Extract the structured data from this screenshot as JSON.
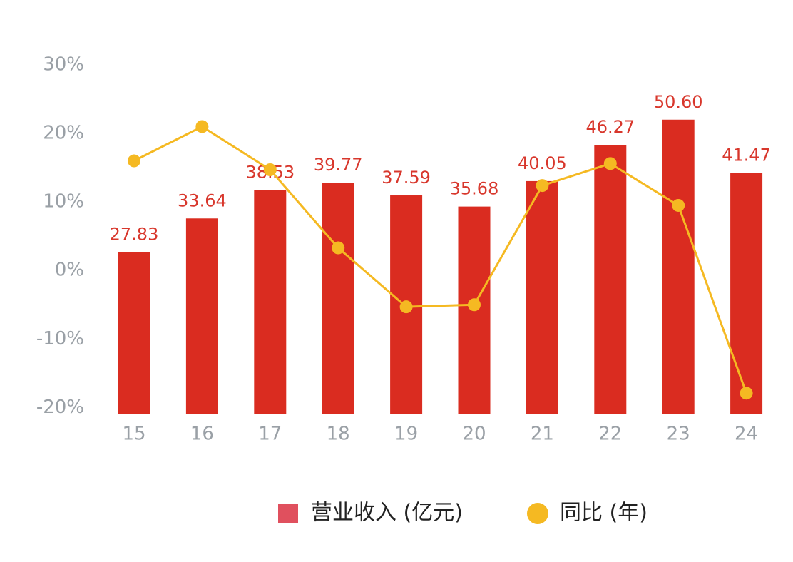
{
  "chart_data": {
    "type": "bar-line",
    "categories": [
      "15",
      "16",
      "17",
      "18",
      "19",
      "20",
      "21",
      "22",
      "23",
      "24"
    ],
    "series": [
      {
        "name": "营业收入 (亿元)",
        "type": "bar",
        "axis": "y2",
        "color": "#da2c20",
        "values": [
          27.83,
          33.64,
          38.53,
          39.77,
          37.59,
          35.68,
          40.05,
          46.27,
          50.6,
          41.47
        ],
        "value_labels": [
          "27.83",
          "33.64",
          "38.53",
          "39.77",
          "37.59",
          "35.68",
          "40.05",
          "46.27",
          "50.60",
          "41.47"
        ]
      },
      {
        "name": "同比 (年)",
        "type": "line",
        "axis": "y",
        "color": "#f5b922",
        "values": [
          16.0,
          21.0,
          14.7,
          3.3,
          -5.3,
          -5.0,
          12.4,
          15.6,
          9.5,
          -17.9
        ]
      }
    ],
    "ylim": [
      -21,
      30
    ],
    "yticks": [
      {
        "value": 30,
        "label": "30%"
      },
      {
        "value": 20,
        "label": "20%"
      },
      {
        "value": 10,
        "label": "10%"
      },
      {
        "value": 0,
        "label": "0%"
      },
      {
        "value": -10,
        "label": "-10%"
      },
      {
        "value": -20,
        "label": "-20%"
      }
    ],
    "y2lim": [
      0,
      60
    ]
  }
}
